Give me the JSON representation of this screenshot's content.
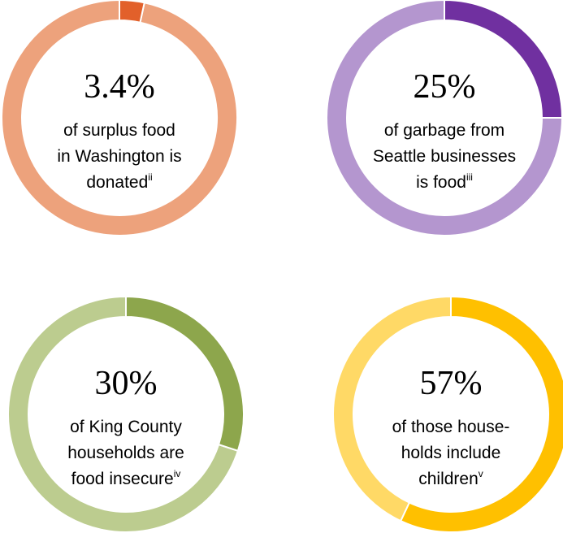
{
  "chart_data": [
    {
      "type": "pie",
      "values": [
        3.4
      ],
      "value_labels": [
        "3.4%"
      ],
      "color": "#e2602a",
      "ring_color": "#eda27c",
      "text": [
        "of surplus food",
        "in Washington is",
        "donated"
      ],
      "footnote": "ii"
    },
    {
      "type": "pie",
      "values": [
        25
      ],
      "value_labels": [
        "25%"
      ],
      "color": "#7030a0",
      "ring_color": "#b496cf",
      "text": [
        "of garbage from",
        "Seattle businesses",
        "is food"
      ],
      "footnote": "iii"
    },
    {
      "type": "pie",
      "values": [
        30
      ],
      "value_labels": [
        "30%"
      ],
      "color": "#8da64c",
      "ring_color": "#bccc8f",
      "text": [
        "of King County",
        "households are",
        "food insecure"
      ],
      "footnote": "iv"
    },
    {
      "type": "pie",
      "values": [
        57
      ],
      "value_labels": [
        "57%"
      ],
      "color": "#ffc000",
      "ring_color": "#ffd966",
      "text": [
        "of those house-",
        "holds include",
        "children"
      ],
      "footnote": "v"
    }
  ]
}
